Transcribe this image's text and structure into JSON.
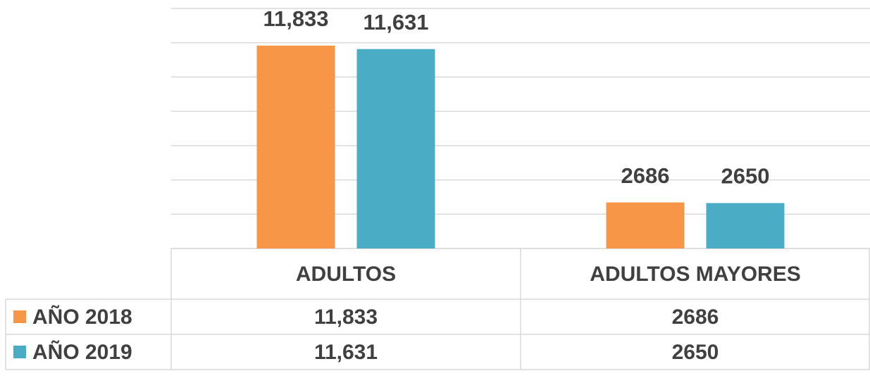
{
  "chart_data": {
    "type": "bar",
    "categories": [
      "ADULTOS",
      "ADULTOS MAYORES"
    ],
    "series": [
      {
        "name": "AÑO 2018",
        "color": "#f79646",
        "values": [
          11833,
          2686
        ],
        "value_labels": [
          "11,833",
          "2686"
        ]
      },
      {
        "name": "AÑO 2019",
        "color": "#4bacc6",
        "values": [
          11631,
          2650
        ],
        "value_labels": [
          "11,631",
          "2650"
        ]
      }
    ],
    "ylim": [
      0,
      14000
    ],
    "yticks": [
      0,
      2000,
      4000,
      6000,
      8000,
      10000,
      12000,
      14000
    ],
    "grid": true
  }
}
